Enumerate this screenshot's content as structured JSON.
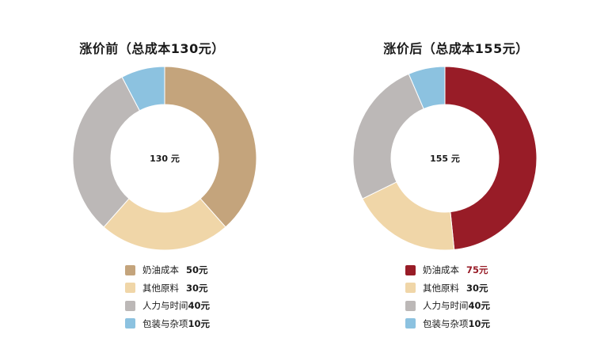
{
  "chart_data": [
    {
      "type": "pie",
      "title": "涨价前（总成本130元）",
      "center_label": "130 元",
      "categories": [
        "奶油成本",
        "其他原料",
        "人力与时间",
        "包装与杂项"
      ],
      "values": [
        50,
        30,
        40,
        10
      ],
      "value_labels": [
        "50元",
        "30元",
        "40元",
        "10元"
      ],
      "colors": [
        "#c4a47c",
        "#f0d6a8",
        "#bcb8b7",
        "#8cc2e0"
      ],
      "value_colors": [
        "#1a1a1a",
        "#1a1a1a",
        "#1a1a1a",
        "#1a1a1a"
      ],
      "legend_position": "bottom"
    },
    {
      "type": "pie",
      "title": "涨价后（总成本155元）",
      "center_label": "155 元",
      "categories": [
        "奶油成本",
        "其他原料",
        "人力与时间",
        "包装与杂项"
      ],
      "values": [
        75,
        30,
        40,
        10
      ],
      "value_labels": [
        "75元",
        "30元",
        "40元",
        "10元"
      ],
      "colors": [
        "#981c27",
        "#f0d6a8",
        "#bcb8b7",
        "#8cc2e0"
      ],
      "value_colors": [
        "#981c27",
        "#1a1a1a",
        "#1a1a1a",
        "#1a1a1a"
      ],
      "legend_position": "bottom"
    }
  ]
}
